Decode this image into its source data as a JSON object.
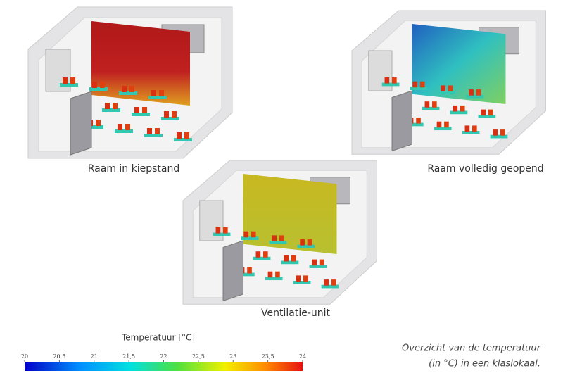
{
  "figures": [
    {
      "caption": "Raam in kiepstand"
    },
    {
      "caption": "Raam volledig geopend"
    },
    {
      "caption": "Ventilatie-unit"
    }
  ],
  "colorbar": {
    "title": "Temperatuur [°C]",
    "range": [
      20,
      24
    ],
    "ticks": [
      20,
      {
        "value": 20.5,
        "label": "20,5"
      },
      21,
      {
        "value": 21.5,
        "label": "21,5"
      },
      22,
      {
        "value": 22.5,
        "label": "22,5"
      },
      23,
      {
        "value": 23.5,
        "label": "23,5"
      },
      24
    ]
  },
  "caption": {
    "lines": [
      "Overzicht van de temperatuur",
      "(in °C) in een klaslokaal."
    ]
  }
}
